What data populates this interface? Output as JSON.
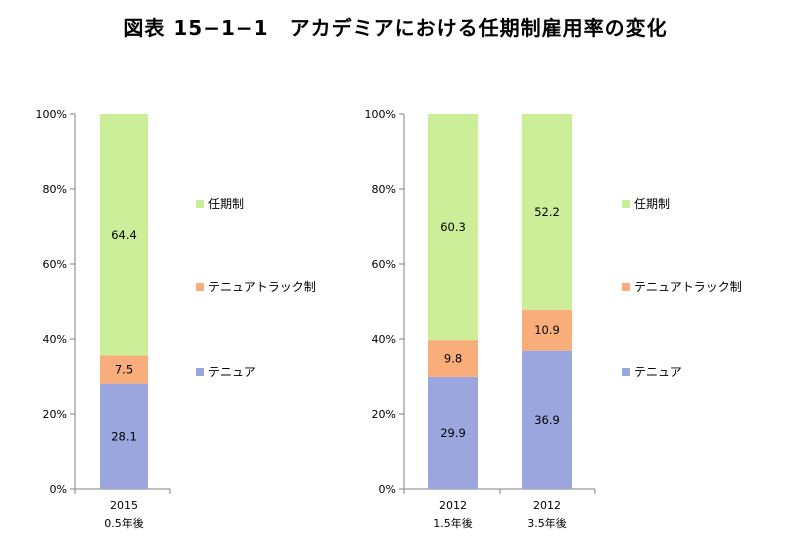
{
  "title": "図表 15−1−1　アカデミアにおける任期制雇用率の変化",
  "chart_data": [
    {
      "type": "bar",
      "stacked": true,
      "categories": [
        [
          "2015",
          "0.5年後"
        ]
      ],
      "series": [
        {
          "name": "テニュア",
          "values": [
            28.1
          ],
          "color": "#9aa6dd"
        },
        {
          "name": "テニュアトラック制",
          "values": [
            7.5
          ],
          "color": "#f9ad7a"
        },
        {
          "name": "任期制",
          "values": [
            64.4
          ],
          "color": "#ccee99"
        }
      ],
      "ylim": [
        0,
        100
      ],
      "yticks": [
        "0%",
        "20%",
        "40%",
        "60%",
        "80%",
        "100%"
      ],
      "legend": "right",
      "grid": false
    },
    {
      "type": "bar",
      "stacked": true,
      "categories": [
        [
          "2012",
          "1.5年後"
        ],
        [
          "2012",
          "3.5年後"
        ]
      ],
      "series": [
        {
          "name": "テニュア",
          "values": [
            29.9,
            36.9
          ],
          "color": "#9aa6dd"
        },
        {
          "name": "テニュアトラック制",
          "values": [
            9.8,
            10.9
          ],
          "color": "#f9ad7a"
        },
        {
          "name": "任期制",
          "values": [
            60.3,
            52.2
          ],
          "color": "#ccee99"
        }
      ],
      "ylim": [
        0,
        100
      ],
      "yticks": [
        "0%",
        "20%",
        "40%",
        "60%",
        "80%",
        "100%"
      ],
      "legend": "right",
      "grid": false
    }
  ]
}
